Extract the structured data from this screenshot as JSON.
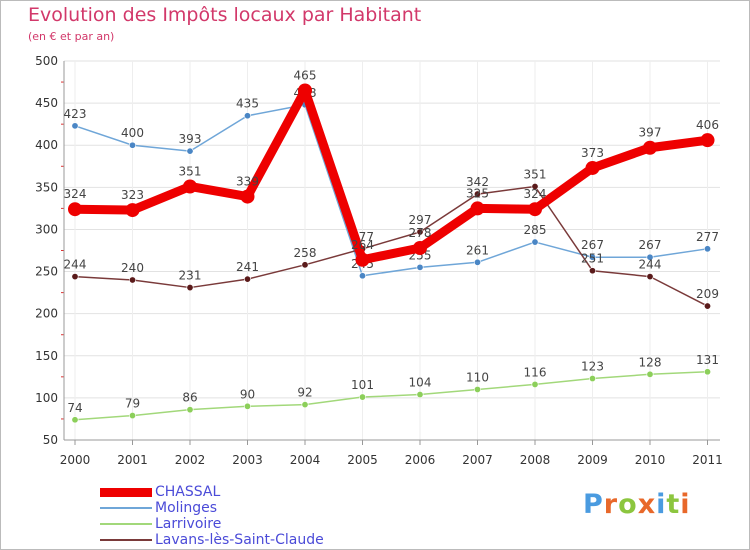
{
  "chart_data": {
    "type": "line",
    "title": "Evolution des Impôts locaux par Habitant",
    "subtitle": "(en € et par an)",
    "xlabel": "",
    "ylabel": "",
    "categories": [
      "2000",
      "2001",
      "2002",
      "2003",
      "2004",
      "2005",
      "2006",
      "2007",
      "2008",
      "2009",
      "2010",
      "2011"
    ],
    "ylim": [
      50,
      500
    ],
    "yticks": [
      50,
      100,
      150,
      200,
      250,
      300,
      350,
      400,
      450,
      500
    ],
    "grid": true,
    "legend_position": "bottom-left",
    "series": [
      {
        "name": "CHASSAL",
        "color": "#ee0000",
        "label_color": "#444444",
        "emphasis": true,
        "values": [
          324,
          323,
          351,
          339,
          465,
          264,
          278,
          325,
          324,
          373,
          397,
          406
        ]
      },
      {
        "name": "Molinges",
        "color": "#6fa6d8",
        "marker_color": "#4a86c5",
        "label_color": "#444444",
        "values": [
          423,
          400,
          393,
          435,
          448,
          245,
          255,
          261,
          285,
          267,
          267,
          277
        ]
      },
      {
        "name": "Larrivoire",
        "color": "#a2d87a",
        "marker_color": "#8ccf5a",
        "label_color": "#444444",
        "values": [
          74,
          79,
          86,
          90,
          92,
          101,
          104,
          110,
          116,
          123,
          128,
          131
        ]
      },
      {
        "name": "Lavans-lès-Saint-Claude",
        "color": "#7a3a3a",
        "marker_color": "#5a1a1a",
        "label_color": "#444444",
        "values": [
          244,
          240,
          231,
          241,
          258,
          277,
          297,
          342,
          351,
          251,
          244,
          209
        ]
      }
    ]
  },
  "brand": {
    "name": "Proxiti",
    "letter_colors": [
      "#4a9be0",
      "#e8682a",
      "#8cc63f",
      "#e8682a",
      "#4a9be0",
      "#8cc63f",
      "#e8682a"
    ]
  }
}
